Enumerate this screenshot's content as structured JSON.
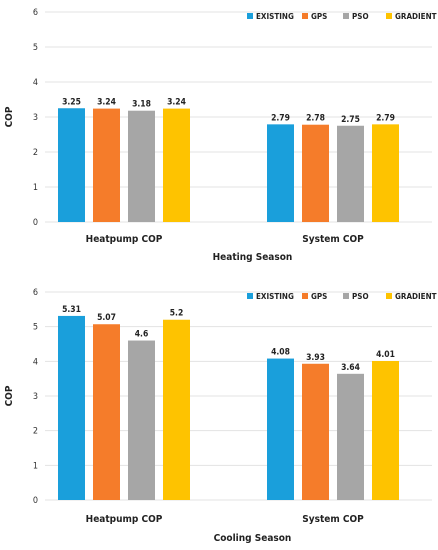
{
  "chart_data": [
    {
      "type": "bar",
      "xlabel": "Heating Season",
      "ylabel": "COP",
      "ylim": [
        0,
        6
      ],
      "yticks": [
        "0",
        "1",
        "2",
        "3",
        "4",
        "5",
        "6"
      ],
      "categories": [
        "Heatpump COP",
        "System COP"
      ],
      "legend_position": "top-right",
      "grid": true,
      "series": [
        {
          "name": "EXISTING",
          "color": "#1a9fdb",
          "values": [
            3.25,
            2.79
          ],
          "labels": [
            "3.25",
            "2.79"
          ]
        },
        {
          "name": "GPS",
          "color": "#f57c2a",
          "values": [
            3.24,
            2.78
          ],
          "labels": [
            "3.24",
            "2.78"
          ]
        },
        {
          "name": "PSO",
          "color": "#a6a6a6",
          "values": [
            3.18,
            2.75
          ],
          "labels": [
            "3.18",
            "2.75"
          ]
        },
        {
          "name": "GRADIENT",
          "color": "#fec300",
          "values": [
            3.24,
            2.79
          ],
          "labels": [
            "3.24",
            "2.79"
          ]
        }
      ]
    },
    {
      "type": "bar",
      "xlabel": "Cooling Season",
      "ylabel": "COP",
      "ylim": [
        0,
        6
      ],
      "yticks": [
        "0",
        "1",
        "2",
        "3",
        "4",
        "5",
        "6"
      ],
      "categories": [
        "Heatpump COP",
        "System COP"
      ],
      "legend_position": "top-right",
      "grid": true,
      "series": [
        {
          "name": "EXISTING",
          "color": "#1a9fdb",
          "values": [
            5.31,
            4.08
          ],
          "labels": [
            "5.31",
            "4.08"
          ]
        },
        {
          "name": "GPS",
          "color": "#f57c2a",
          "values": [
            5.07,
            3.93
          ],
          "labels": [
            "5.07",
            "3.93"
          ]
        },
        {
          "name": "PSO",
          "color": "#a6a6a6",
          "values": [
            4.6,
            3.64
          ],
          "labels": [
            "4.6",
            "3.64"
          ]
        },
        {
          "name": "GRADIENT",
          "color": "#fec300",
          "values": [
            5.2,
            4.01
          ],
          "labels": [
            "5.2",
            "4.01"
          ]
        }
      ]
    }
  ]
}
